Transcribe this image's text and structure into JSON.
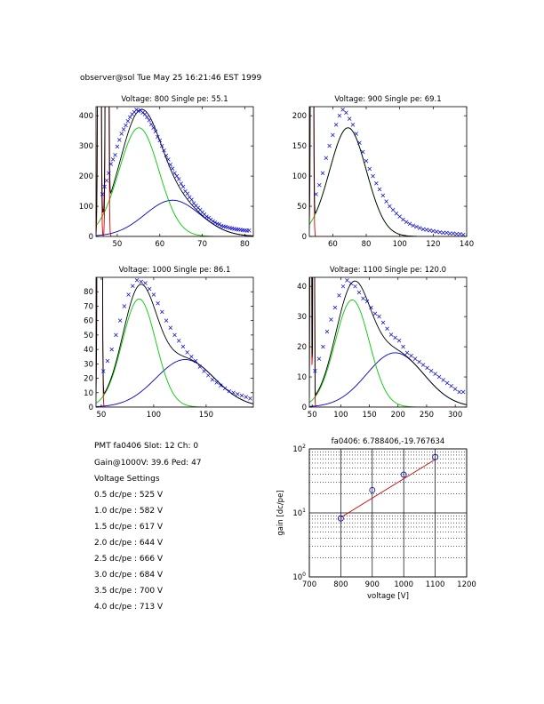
{
  "header": "observer@sol  Tue May 25 16:21:46 EST 1999",
  "info_lines": [
    "PMT fa0406 Slot: 12 Ch: 0",
    "Gain@1000V: 39.6 Ped: 47",
    "Voltage Settings",
    "0.5 dc/pe : 525 V",
    "1.0 dc/pe : 582 V",
    "1.5 dc/pe : 617 V",
    "2.0 dc/pe : 644 V",
    "2.5 dc/pe : 666 V",
    "3.0 dc/pe : 684 V",
    "3.5 dc/pe : 700 V",
    "4.0 dc/pe : 713 V"
  ],
  "colors": {
    "data": "#0000cc",
    "total": "#000000",
    "single_pe": "#00cc00",
    "multi_pe": "#0000cc",
    "pedestal": "#cc0000",
    "gain_line": "#cc0000",
    "gain_points": "#0000cc"
  },
  "chart_data": [
    {
      "type": "scatter",
      "title": "Voltage: 800 Single pe: 55.1",
      "xlim": [
        45,
        82
      ],
      "ylim": [
        0,
        430
      ],
      "xticks": [
        50,
        60,
        70,
        80
      ],
      "yticks": [
        0,
        100,
        200,
        300,
        400
      ],
      "pedestal": {
        "centers": [
          45.8,
          47.6
        ],
        "sigma": 0.22,
        "peak": 4000
      },
      "single_pe": {
        "mu": 55.1,
        "sigma": 4.7,
        "amp": 360
      },
      "multi_pe": {
        "mu": 63,
        "sigma": 6.5,
        "amp": 120
      },
      "points_x": [
        46.5,
        47,
        47.5,
        48,
        48.5,
        49,
        49.5,
        50,
        50.5,
        51,
        51.5,
        52,
        52.5,
        53,
        53.5,
        54,
        54.5,
        55,
        55.5,
        56,
        56.5,
        57,
        57.5,
        58,
        58.5,
        59,
        59.5,
        60,
        60.5,
        61,
        61.5,
        62,
        62.5,
        63,
        63.5,
        64,
        64.5,
        65,
        65.5,
        66,
        66.5,
        67,
        67.5,
        68,
        68.5,
        69,
        69.5,
        70,
        70.5,
        71,
        71.5,
        72,
        72.5,
        73,
        73.5,
        74,
        74.5,
        75,
        75.5,
        76,
        76.5,
        77,
        77.5,
        78,
        78.5,
        79,
        79.5,
        80,
        80.5,
        81
      ],
      "points_y": [
        140,
        165,
        185,
        210,
        240,
        255,
        270,
        298,
        320,
        340,
        355,
        368,
        382,
        395,
        405,
        412,
        420,
        415,
        418,
        410,
        405,
        395,
        385,
        372,
        360,
        348,
        330,
        318,
        300,
        285,
        268,
        255,
        238,
        225,
        210,
        200,
        190,
        175,
        165,
        150,
        142,
        130,
        122,
        110,
        102,
        95,
        88,
        80,
        73,
        66,
        62,
        56,
        50,
        46,
        42,
        40,
        35,
        33,
        32,
        30,
        28,
        27,
        25,
        24,
        23,
        22,
        21,
        20,
        19,
        20
      ]
    },
    {
      "type": "scatter",
      "title": "Voltage: 900 Single pe: 69.1",
      "xlim": [
        46,
        140
      ],
      "ylim": [
        0,
        215
      ],
      "xticks": [
        60,
        80,
        100,
        120,
        140
      ],
      "yticks": [
        0,
        50,
        100,
        150,
        200
      ],
      "pedestal": {
        "centers": [
          47.6
        ],
        "sigma": 0.5,
        "peak": 2000
      },
      "single_pe": {
        "mu": 69.1,
        "sigma": 11,
        "amp": 180
      },
      "multi_pe": {
        "mu": 88,
        "sigma": 16,
        "amp": 0
      },
      "points_x": [
        50,
        52,
        54,
        56,
        58,
        60,
        62,
        64,
        66,
        68,
        70,
        72,
        74,
        76,
        78,
        80,
        82,
        84,
        86,
        88,
        90,
        92,
        94,
        96,
        98,
        100,
        102,
        104,
        106,
        108,
        110,
        112,
        114,
        116,
        118,
        120,
        122,
        124,
        126,
        128,
        130,
        132,
        134,
        136,
        138
      ],
      "points_y": [
        70,
        85,
        105,
        130,
        150,
        168,
        185,
        200,
        210,
        205,
        195,
        185,
        170,
        155,
        140,
        125,
        112,
        100,
        88,
        78,
        68,
        58,
        50,
        44,
        38,
        33,
        28,
        24,
        21,
        18,
        16,
        14,
        12,
        11,
        10,
        9,
        8,
        7,
        6,
        6,
        5,
        5,
        4,
        4,
        3
      ]
    },
    {
      "type": "scatter",
      "title": "Voltage: 1000 Single pe: 86.1",
      "xlim": [
        45,
        195
      ],
      "ylim": [
        0,
        90
      ],
      "xticks": [
        50,
        100,
        150
      ],
      "yticks": [
        0,
        10,
        20,
        30,
        40,
        50,
        60,
        70,
        80
      ],
      "pedestal": {
        "centers": [
          47.5,
          49.5
        ],
        "sigma": 0.8,
        "peak": 900
      },
      "single_pe": {
        "mu": 86.1,
        "sigma": 16,
        "amp": 75
      },
      "multi_pe": {
        "mu": 130,
        "sigma": 28,
        "amp": 33
      },
      "points_x": [
        52,
        56,
        60,
        64,
        68,
        72,
        76,
        80,
        84,
        88,
        92,
        96,
        100,
        104,
        108,
        112,
        116,
        120,
        124,
        128,
        132,
        136,
        140,
        144,
        148,
        152,
        156,
        160,
        164,
        168,
        172,
        176,
        180,
        184,
        188,
        192
      ],
      "points_y": [
        25,
        32,
        40,
        50,
        60,
        70,
        78,
        84,
        88,
        87,
        86,
        82,
        78,
        72,
        66,
        60,
        55,
        50,
        46,
        42,
        38,
        35,
        32,
        28,
        25,
        22,
        19,
        17,
        15,
        13,
        11,
        10,
        9,
        8,
        7,
        6
      ]
    },
    {
      "type": "scatter",
      "title": "Voltage: 1100 Single pe: 120.0",
      "xlim": [
        45,
        320
      ],
      "ylim": [
        0,
        43
      ],
      "xticks": [
        50,
        100,
        150,
        200,
        250,
        300
      ],
      "yticks": [
        0,
        10,
        20,
        30,
        40
      ],
      "pedestal": {
        "centers": [
          47.5,
          52.5
        ],
        "sigma": 0.8,
        "peak": 400
      },
      "single_pe": {
        "mu": 120,
        "sigma": 30,
        "amp": 35.5
      },
      "multi_pe": {
        "mu": 195,
        "sigma": 50,
        "amp": 18
      },
      "points_x": [
        55,
        62,
        69,
        76,
        83,
        90,
        97,
        104,
        111,
        118,
        125,
        132,
        139,
        146,
        153,
        160,
        167,
        174,
        181,
        188,
        195,
        202,
        209,
        216,
        223,
        230,
        237,
        244,
        251,
        258,
        265,
        272,
        279,
        286,
        293,
        300,
        307,
        314
      ],
      "points_y": [
        12,
        16,
        20,
        25,
        29,
        33,
        37,
        40,
        42,
        41,
        40,
        38,
        36,
        35,
        33,
        31,
        30,
        28,
        26,
        24,
        23,
        22,
        20,
        18,
        17,
        16,
        15,
        14,
        13,
        12,
        11,
        10,
        9,
        8,
        7,
        6,
        5,
        5
      ]
    },
    {
      "type": "line",
      "title": "fa0406: 6.788406,-19.767634",
      "xlabel": "voltage [V]",
      "ylabel": "gain [dc/pe]",
      "xlim": [
        700,
        1200
      ],
      "ylim": [
        1,
        100
      ],
      "yscale": "log",
      "xticks": [
        700,
        800,
        900,
        1000,
        1100,
        1200
      ],
      "ytick_labels": [
        {
          "value": 1,
          "base": "10",
          "exp": "0"
        },
        {
          "value": 10,
          "base": "10",
          "exp": "1"
        },
        {
          "value": 100,
          "base": "10",
          "exp": "2"
        }
      ],
      "points": [
        {
          "x": 800,
          "y": 8.2
        },
        {
          "x": 900,
          "y": 22.7
        },
        {
          "x": 1000,
          "y": 39.6
        },
        {
          "x": 1100,
          "y": 74.5
        }
      ],
      "fit": {
        "x": [
          800,
          1100
        ],
        "y": [
          8.5,
          68.5
        ]
      }
    }
  ]
}
